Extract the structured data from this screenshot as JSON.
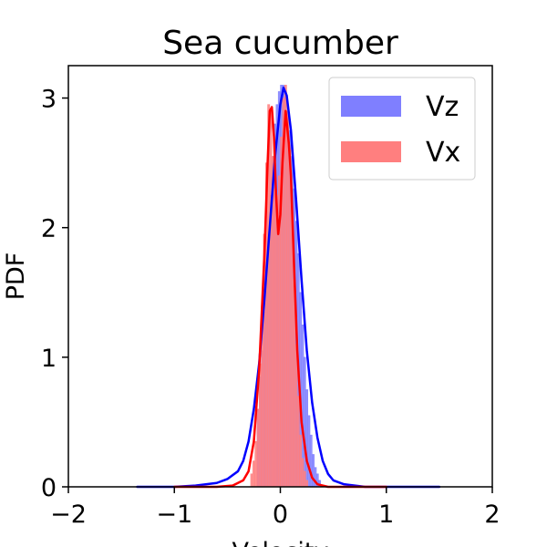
{
  "chart_data": {
    "type": "area",
    "title": "Sea cucumber",
    "xlabel": "Velocity",
    "ylabel": "PDF",
    "xlim": [
      -2,
      2
    ],
    "ylim": [
      0,
      3.25
    ],
    "xticks": [
      {
        "value": -2,
        "label": "−2"
      },
      {
        "value": -1,
        "label": "−1"
      },
      {
        "value": 0,
        "label": "0"
      },
      {
        "value": 1,
        "label": "1"
      },
      {
        "value": 2,
        "label": "2"
      }
    ],
    "yticks": [
      {
        "value": 0,
        "label": "0"
      },
      {
        "value": 1,
        "label": "1"
      },
      {
        "value": 2,
        "label": "2"
      },
      {
        "value": 3,
        "label": "3"
      }
    ],
    "grid": false,
    "legend_position": "top-right",
    "series": [
      {
        "name": "Vz",
        "color": "#0000ff",
        "fill_color": "#7f7fff",
        "hist_bins": {
          "x": [
            -0.21,
            -0.19,
            -0.17,
            -0.15,
            -0.13,
            -0.11,
            -0.09,
            -0.07,
            -0.05,
            -0.03,
            -0.01,
            0.01,
            0.03,
            0.05,
            0.07,
            0.09,
            0.11,
            0.13,
            0.15,
            0.17,
            0.19,
            0.21,
            0.23,
            0.25,
            0.27,
            0.29,
            0.31,
            0.33,
            0.35,
            0.37
          ],
          "y": [
            0.6,
            0.85,
            1.05,
            1.35,
            1.6,
            1.9,
            2.25,
            2.55,
            2.8,
            2.95,
            3.05,
            3.1,
            3.1,
            3.05,
            2.9,
            2.75,
            2.55,
            2.3,
            2.05,
            1.8,
            1.5,
            1.25,
            1.0,
            0.75,
            0.55,
            0.4,
            0.25,
            0.15,
            0.1,
            0.05
          ]
        },
        "kde": {
          "x": [
            -1.35,
            -1.0,
            -0.8,
            -0.6,
            -0.5,
            -0.4,
            -0.35,
            -0.3,
            -0.25,
            -0.2,
            -0.15,
            -0.1,
            -0.05,
            0.0,
            0.03,
            0.06,
            0.1,
            0.15,
            0.2,
            0.25,
            0.3,
            0.35,
            0.4,
            0.45,
            0.5,
            0.6,
            0.8,
            1.0,
            1.5
          ],
          "y": [
            0.0,
            0.0,
            0.01,
            0.03,
            0.06,
            0.12,
            0.2,
            0.35,
            0.6,
            0.95,
            1.45,
            2.0,
            2.55,
            2.95,
            3.08,
            3.02,
            2.75,
            2.2,
            1.6,
            1.05,
            0.65,
            0.38,
            0.2,
            0.1,
            0.05,
            0.02,
            0.0,
            0.0,
            0.0
          ]
        }
      },
      {
        "name": "Vx",
        "color": "#ff0000",
        "fill_color": "#ff7f7f",
        "hist_bins": {
          "x": [
            -0.27,
            -0.25,
            -0.23,
            -0.21,
            -0.19,
            -0.17,
            -0.15,
            -0.13,
            -0.11,
            -0.09,
            -0.07,
            -0.05,
            -0.03,
            -0.01,
            0.01,
            0.03,
            0.05,
            0.07,
            0.09,
            0.11,
            0.13,
            0.15,
            0.17,
            0.19,
            0.21,
            0.23,
            0.25
          ],
          "y": [
            0.1,
            0.2,
            0.35,
            0.6,
            0.95,
            1.4,
            1.95,
            2.5,
            2.95,
            2.9,
            2.55,
            2.3,
            2.25,
            2.4,
            2.7,
            3.0,
            3.1,
            2.9,
            2.6,
            2.1,
            1.6,
            1.1,
            0.7,
            0.4,
            0.22,
            0.12,
            0.05
          ]
        },
        "kde": {
          "x": [
            -1.0,
            -0.6,
            -0.45,
            -0.35,
            -0.3,
            -0.25,
            -0.2,
            -0.15,
            -0.12,
            -0.1,
            -0.08,
            -0.06,
            -0.04,
            -0.02,
            0.0,
            0.02,
            0.05,
            0.08,
            0.1,
            0.13,
            0.16,
            0.2,
            0.25,
            0.3,
            0.35,
            0.45,
            0.6,
            1.0
          ],
          "y": [
            0.0,
            0.0,
            0.01,
            0.05,
            0.12,
            0.35,
            0.9,
            1.8,
            2.5,
            2.9,
            2.93,
            2.7,
            2.25,
            1.95,
            2.1,
            2.5,
            2.9,
            2.65,
            2.4,
            1.7,
            1.05,
            0.5,
            0.2,
            0.07,
            0.02,
            0.0,
            0.0,
            0.0
          ]
        }
      }
    ]
  }
}
